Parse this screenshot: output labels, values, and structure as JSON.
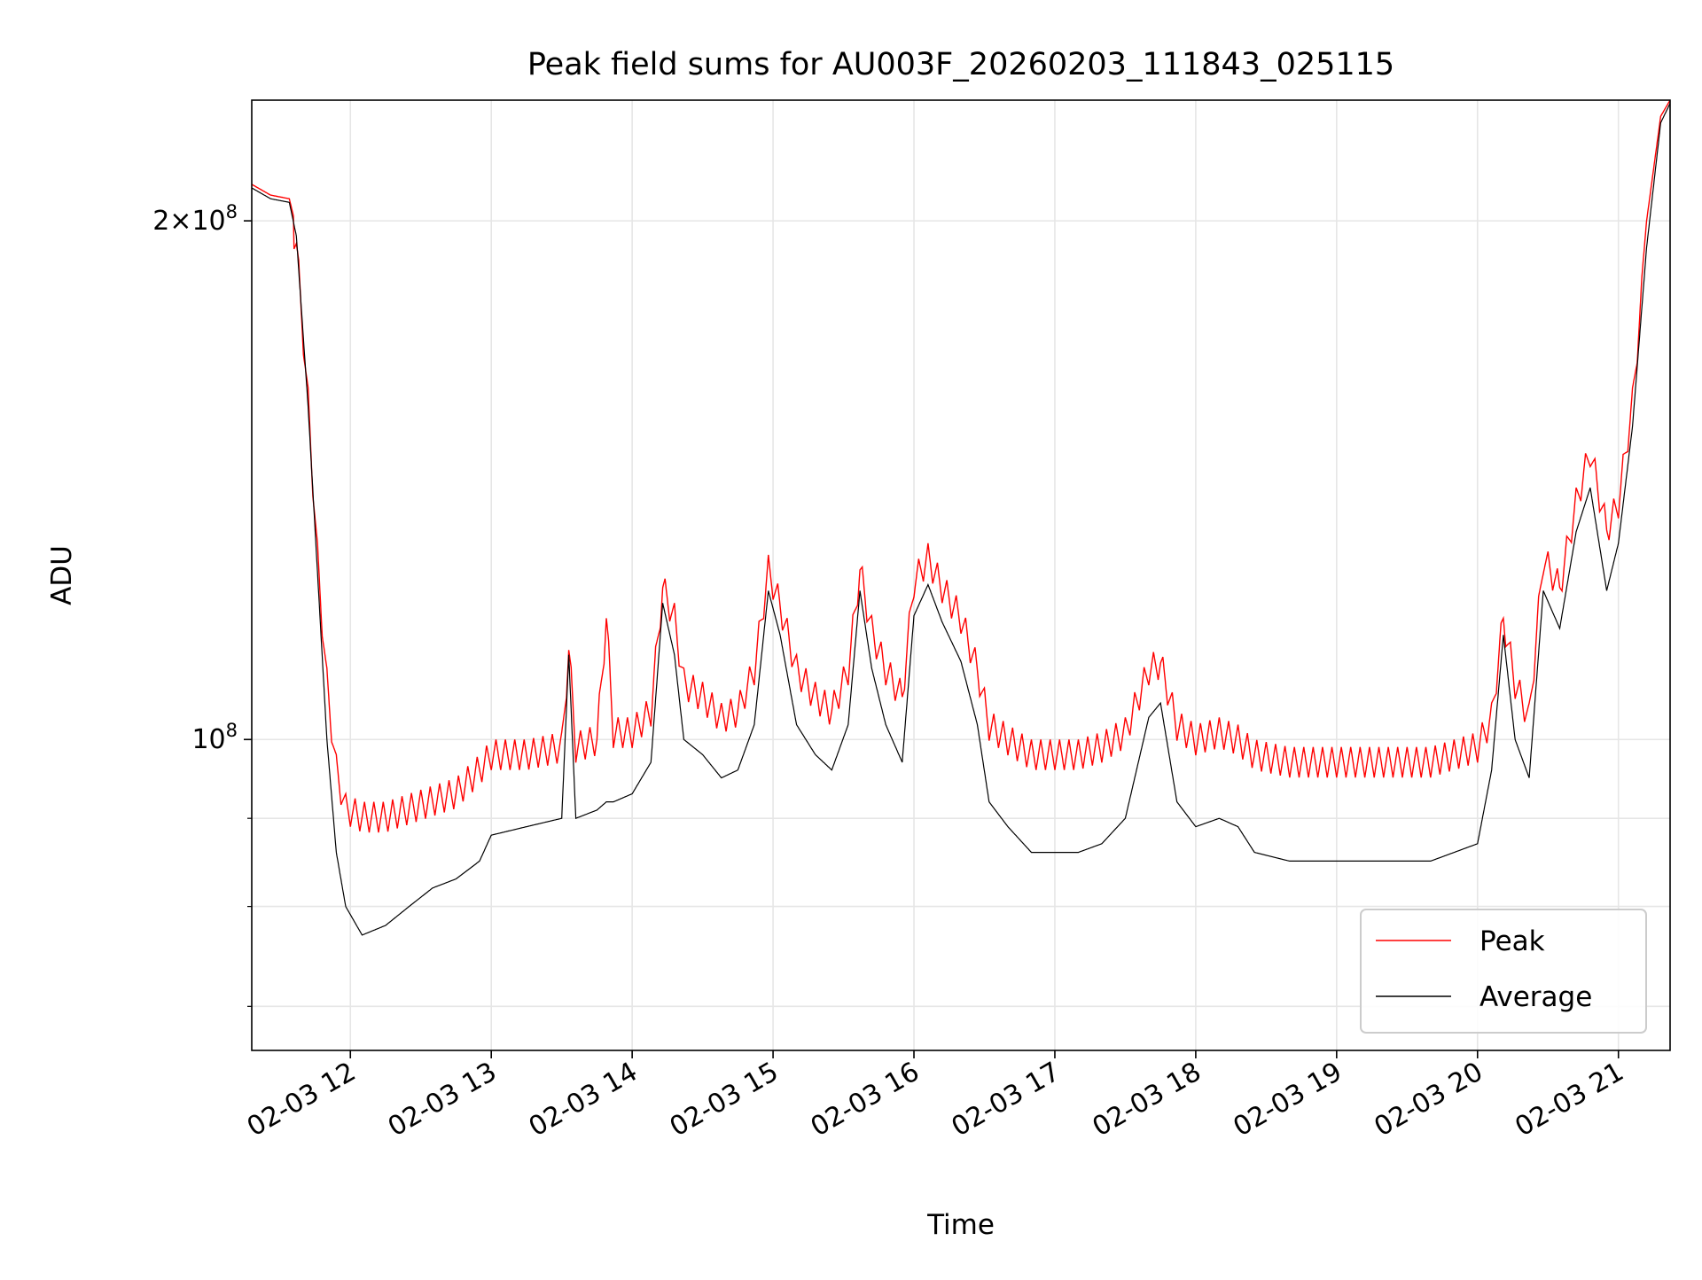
{
  "chart_data": {
    "type": "line",
    "title": "Peak field sums for AU003F_20260203_111843_025115",
    "xlabel": "Time",
    "ylabel": "ADU",
    "y_scale": "log",
    "x_unit": "2026-02-03 time of day (HH:MM)",
    "xlim": [
      "11:18",
      "21:22"
    ],
    "ylim": [
      66000000,
      235000000
    ],
    "grid": true,
    "legend_position": "lower right",
    "x_ticks": [
      "02-03 12",
      "02-03 13",
      "02-03 14",
      "02-03 15",
      "02-03 16",
      "02-03 17",
      "02-03 18",
      "02-03 19",
      "02-03 20",
      "02-03 21"
    ],
    "y_ticks": [
      {
        "value": 100000000,
        "label": "10",
        "exp": "8",
        "prefix": ""
      },
      {
        "value": 200000000,
        "label": "10",
        "exp": "8",
        "prefix": "2×"
      }
    ],
    "y_minor_ticks": [
      70000000,
      80000000,
      90000000
    ],
    "series": [
      {
        "name": "Peak",
        "color": "#ff0000",
        "points": [
          [
            "11:18",
            210000000
          ],
          [
            "11:26",
            207000000
          ],
          [
            "11:34",
            206000000
          ],
          [
            "11:37",
            198000000
          ],
          [
            "11:42",
            160000000
          ],
          [
            "11:46",
            130000000
          ],
          [
            "11:50",
            110000000
          ],
          [
            "11:54",
            98000000
          ],
          [
            "11:58",
            93000000
          ],
          [
            "12:05",
            92000000
          ],
          [
            "12:15",
            92000000
          ],
          [
            "12:25",
            93000000
          ],
          [
            "12:35",
            94000000
          ],
          [
            "12:45",
            95000000
          ],
          [
            "12:55",
            98000000
          ],
          [
            "13:00",
            100000000
          ],
          [
            "13:15",
            100000000
          ],
          [
            "13:30",
            101000000
          ],
          [
            "13:33",
            115000000
          ],
          [
            "13:36",
            101000000
          ],
          [
            "13:45",
            102000000
          ],
          [
            "13:49",
            120000000
          ],
          [
            "13:52",
            103000000
          ],
          [
            "14:00",
            103000000
          ],
          [
            "14:08",
            106000000
          ],
          [
            "14:13",
            125000000
          ],
          [
            "14:18",
            120000000
          ],
          [
            "14:22",
            110000000
          ],
          [
            "14:30",
            108000000
          ],
          [
            "14:38",
            105000000
          ],
          [
            "14:45",
            106000000
          ],
          [
            "14:52",
            112000000
          ],
          [
            "14:58",
            128000000
          ],
          [
            "15:03",
            122000000
          ],
          [
            "15:10",
            112000000
          ],
          [
            "15:18",
            108000000
          ],
          [
            "15:25",
            106000000
          ],
          [
            "15:32",
            112000000
          ],
          [
            "15:37",
            128000000
          ],
          [
            "15:42",
            118000000
          ],
          [
            "15:48",
            112000000
          ],
          [
            "15:55",
            108000000
          ],
          [
            "16:00",
            126000000
          ],
          [
            "16:06",
            130000000
          ],
          [
            "16:12",
            125000000
          ],
          [
            "16:20",
            120000000
          ],
          [
            "16:27",
            112000000
          ],
          [
            "16:32",
            104000000
          ],
          [
            "16:40",
            102000000
          ],
          [
            "16:50",
            100000000
          ],
          [
            "17:00",
            100000000
          ],
          [
            "17:10",
            100000000
          ],
          [
            "17:20",
            101000000
          ],
          [
            "17:30",
            103000000
          ],
          [
            "17:40",
            112000000
          ],
          [
            "17:45",
            113000000
          ],
          [
            "17:52",
            104000000
          ],
          [
            "18:00",
            102000000
          ],
          [
            "18:10",
            103000000
          ],
          [
            "18:18",
            102000000
          ],
          [
            "18:25",
            100000000
          ],
          [
            "18:40",
            99000000
          ],
          [
            "19:00",
            99000000
          ],
          [
            "19:20",
            99000000
          ],
          [
            "19:40",
            99000000
          ],
          [
            "20:00",
            101000000
          ],
          [
            "20:06",
            105000000
          ],
          [
            "20:11",
            120000000
          ],
          [
            "20:16",
            110000000
          ],
          [
            "20:22",
            105000000
          ],
          [
            "20:28",
            130000000
          ],
          [
            "20:35",
            125000000
          ],
          [
            "20:42",
            140000000
          ],
          [
            "20:48",
            150000000
          ],
          [
            "20:55",
            135000000
          ],
          [
            "21:00",
            140000000
          ],
          [
            "21:06",
            160000000
          ],
          [
            "21:12",
            200000000
          ],
          [
            "21:18",
            230000000
          ],
          [
            "21:22",
            235000000
          ]
        ]
      },
      {
        "name": "Average",
        "color": "#000000",
        "points": [
          [
            "11:18",
            209000000
          ],
          [
            "11:26",
            206000000
          ],
          [
            "11:34",
            205000000
          ],
          [
            "11:37",
            196000000
          ],
          [
            "11:42",
            156000000
          ],
          [
            "11:46",
            125000000
          ],
          [
            "11:50",
            100000000
          ],
          [
            "11:54",
            86000000
          ],
          [
            "11:58",
            80000000
          ],
          [
            "12:05",
            77000000
          ],
          [
            "12:15",
            78000000
          ],
          [
            "12:25",
            80000000
          ],
          [
            "12:35",
            82000000
          ],
          [
            "12:45",
            83000000
          ],
          [
            "12:55",
            85000000
          ],
          [
            "13:00",
            88000000
          ],
          [
            "13:15",
            89000000
          ],
          [
            "13:30",
            90000000
          ],
          [
            "13:33",
            112000000
          ],
          [
            "13:36",
            90000000
          ],
          [
            "13:45",
            91000000
          ],
          [
            "13:49",
            92000000
          ],
          [
            "13:52",
            92000000
          ],
          [
            "14:00",
            93000000
          ],
          [
            "14:08",
            97000000
          ],
          [
            "14:13",
            120000000
          ],
          [
            "14:18",
            112000000
          ],
          [
            "14:22",
            100000000
          ],
          [
            "14:30",
            98000000
          ],
          [
            "14:38",
            95000000
          ],
          [
            "14:45",
            96000000
          ],
          [
            "14:52",
            102000000
          ],
          [
            "14:58",
            122000000
          ],
          [
            "15:03",
            115000000
          ],
          [
            "15:10",
            102000000
          ],
          [
            "15:18",
            98000000
          ],
          [
            "15:25",
            96000000
          ],
          [
            "15:32",
            102000000
          ],
          [
            "15:37",
            122000000
          ],
          [
            "15:42",
            110000000
          ],
          [
            "15:48",
            102000000
          ],
          [
            "15:55",
            97000000
          ],
          [
            "16:00",
            118000000
          ],
          [
            "16:06",
            123000000
          ],
          [
            "16:12",
            117000000
          ],
          [
            "16:20",
            111000000
          ],
          [
            "16:27",
            102000000
          ],
          [
            "16:32",
            92000000
          ],
          [
            "16:40",
            89000000
          ],
          [
            "16:50",
            86000000
          ],
          [
            "17:00",
            86000000
          ],
          [
            "17:10",
            86000000
          ],
          [
            "17:20",
            87000000
          ],
          [
            "17:30",
            90000000
          ],
          [
            "17:40",
            103000000
          ],
          [
            "17:45",
            105000000
          ],
          [
            "17:52",
            92000000
          ],
          [
            "18:00",
            89000000
          ],
          [
            "18:10",
            90000000
          ],
          [
            "18:18",
            89000000
          ],
          [
            "18:25",
            86000000
          ],
          [
            "18:40",
            85000000
          ],
          [
            "19:00",
            85000000
          ],
          [
            "19:20",
            85000000
          ],
          [
            "19:40",
            85000000
          ],
          [
            "20:00",
            87000000
          ],
          [
            "20:06",
            96000000
          ],
          [
            "20:11",
            115000000
          ],
          [
            "20:16",
            100000000
          ],
          [
            "20:22",
            95000000
          ],
          [
            "20:28",
            122000000
          ],
          [
            "20:35",
            116000000
          ],
          [
            "20:42",
            132000000
          ],
          [
            "20:48",
            140000000
          ],
          [
            "20:55",
            122000000
          ],
          [
            "21:00",
            130000000
          ],
          [
            "21:06",
            152000000
          ],
          [
            "21:12",
            193000000
          ],
          [
            "21:18",
            228000000
          ],
          [
            "21:22",
            234000000
          ]
        ]
      }
    ]
  }
}
